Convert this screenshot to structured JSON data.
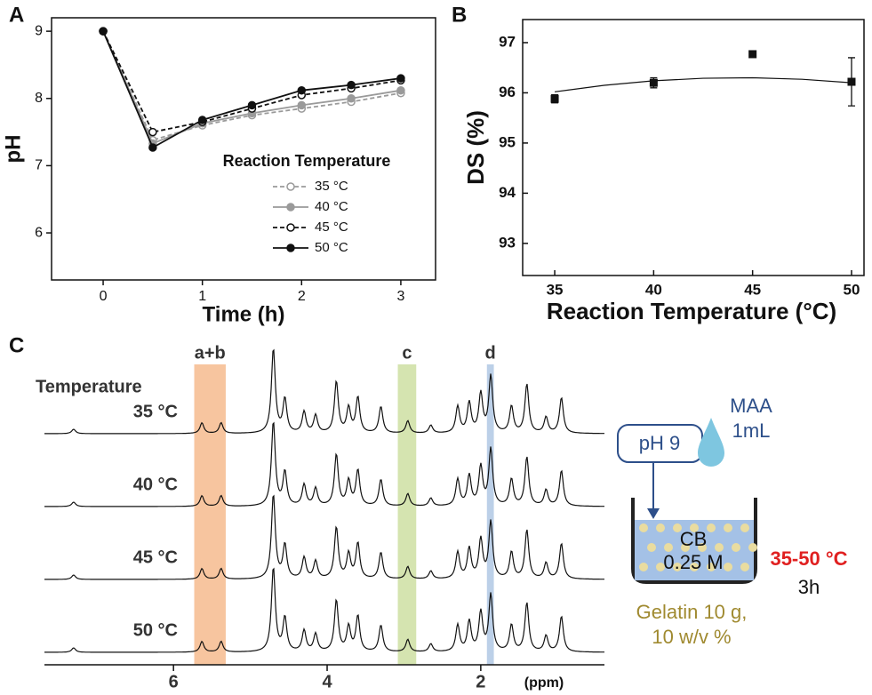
{
  "chart_data": [
    {
      "type": "line",
      "panel": "A",
      "x_label": "Time (h)",
      "y_label": "pH",
      "legend_title": "Reaction Temperature",
      "x": [
        0,
        0.5,
        1,
        1.5,
        2,
        2.5,
        3
      ],
      "xlim": [
        -0.52,
        3.35
      ],
      "xticks": [
        0,
        1,
        2,
        3
      ],
      "ylim": [
        5.3,
        9.2
      ],
      "yticks": [
        6,
        7,
        8,
        9
      ],
      "series": [
        {
          "name": "35 °C",
          "color": "#9a9a9a",
          "line_style": "dashed",
          "marker": "open",
          "values": [
            9,
            7.38,
            7.6,
            7.75,
            7.85,
            7.95,
            8.08
          ]
        },
        {
          "name": "40 °C",
          "color": "#9a9a9a",
          "line_style": "solid",
          "marker": "filled",
          "values": [
            9,
            7.33,
            7.63,
            7.78,
            7.9,
            8.0,
            8.12
          ]
        },
        {
          "name": "45 °C",
          "color": "#111111",
          "line_style": "dashed",
          "marker": "open",
          "values": [
            9,
            7.5,
            7.65,
            7.85,
            8.05,
            8.15,
            8.27
          ]
        },
        {
          "name": "50 °C",
          "color": "#111111",
          "line_style": "solid",
          "marker": "filled",
          "values": [
            9,
            7.27,
            7.68,
            7.9,
            8.12,
            8.2,
            8.3
          ]
        }
      ]
    },
    {
      "type": "scatter",
      "panel": "B",
      "x_label": "Reaction Temperature (°C)",
      "y_label": "DS (%)",
      "x": [
        35,
        40,
        45,
        50
      ],
      "values": [
        95.88,
        96.2,
        96.77,
        96.22
      ],
      "errors": [
        0.08,
        0.1,
        0.04,
        0.48
      ],
      "color": "#111111",
      "fit": {
        "x": [
          35,
          37.5,
          40,
          42.5,
          45,
          47.5,
          50
        ],
        "values": [
          96.02,
          96.15,
          96.24,
          96.29,
          96.3,
          96.27,
          96.2
        ]
      },
      "xlim": [
        33.38,
        50.63
      ],
      "xticks": [
        35,
        40,
        45,
        50
      ],
      "ylim": [
        92.36,
        97.46
      ],
      "yticks": [
        93,
        94,
        95,
        96,
        97
      ]
    },
    {
      "type": "nmr",
      "panel": "C",
      "x_label": "(ppm)",
      "traces_title": "Temperature",
      "traces": [
        "35 °C",
        "40 °C",
        "45 °C",
        "50 °C"
      ],
      "xlim": [
        7.68,
        0.39
      ],
      "xticks": [
        6,
        4,
        2
      ],
      "regions": [
        {
          "label": "a+b",
          "from": 5.73,
          "to": 5.32,
          "color": "#f7c59f"
        },
        {
          "label": "c",
          "from": 3.08,
          "to": 2.84,
          "color": "#d5e4b0"
        },
        {
          "label": "d",
          "from": 1.92,
          "to": 1.83,
          "color": "#bcd0e8"
        }
      ],
      "peaks": [
        {
          "ppm": 7.3,
          "height": 5
        },
        {
          "ppm": 5.63,
          "height": 12
        },
        {
          "ppm": 5.38,
          "height": 12
        },
        {
          "ppm": 4.7,
          "height": 95
        },
        {
          "ppm": 4.55,
          "height": 38
        },
        {
          "ppm": 4.3,
          "height": 24
        },
        {
          "ppm": 4.15,
          "height": 20
        },
        {
          "ppm": 3.88,
          "height": 58
        },
        {
          "ppm": 3.72,
          "height": 28
        },
        {
          "ppm": 3.6,
          "height": 40
        },
        {
          "ppm": 3.3,
          "height": 30
        },
        {
          "ppm": 2.95,
          "height": 14
        },
        {
          "ppm": 2.65,
          "height": 9
        },
        {
          "ppm": 2.3,
          "height": 30
        },
        {
          "ppm": 2.15,
          "height": 34
        },
        {
          "ppm": 2.0,
          "height": 44
        },
        {
          "ppm": 1.87,
          "height": 64
        },
        {
          "ppm": 1.6,
          "height": 30
        },
        {
          "ppm": 1.4,
          "height": 55
        },
        {
          "ppm": 1.15,
          "height": 18
        },
        {
          "ppm": 0.95,
          "height": 40
        }
      ]
    }
  ],
  "scheme": {
    "ph": "pH 9",
    "reagent": "MAA",
    "reagent_amount": "1mL",
    "solvent": "CB",
    "concentration": "0.25 M",
    "temperature": "35-50 °C",
    "time": "3h",
    "gelatin_mass": "Gelatin 10 g,",
    "gelatin_conc": "10 w/v %"
  }
}
